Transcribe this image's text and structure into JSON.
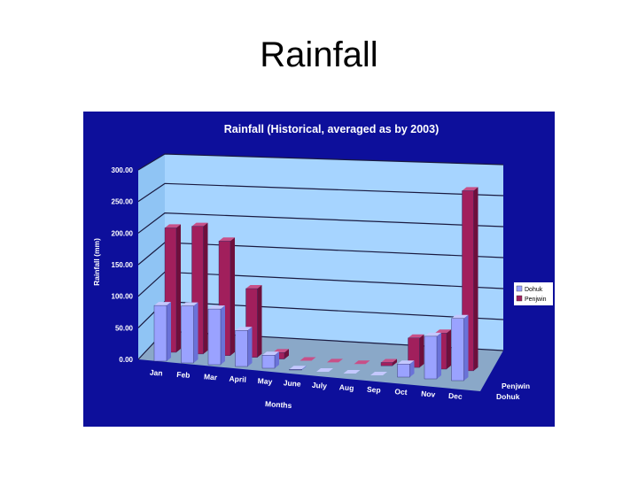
{
  "slide": {
    "title": "Rainfall"
  },
  "colors": {
    "panel": "#0d0f9b",
    "wall": "#a6d4ff",
    "floor": "#8aa8c8",
    "dohuk_front": "#9aa2ff",
    "dohuk_top": "#c4c8ff",
    "dohuk_side": "#6a72d8",
    "penjwin_front": "#a11f5c",
    "penjwin_top": "#c85088",
    "penjwin_side": "#6e0f3c"
  },
  "chart_data": {
    "type": "bar",
    "title": "Rainfall (Historical, averaged as by 2003)",
    "xlabel": "Months",
    "ylabel": "Rainfall (mm)",
    "ylim": [
      0,
      300
    ],
    "ytick_labels": [
      "0.00",
      "50.00",
      "100.00",
      "150.00",
      "200.00",
      "250.00",
      "300.00"
    ],
    "categories": [
      "Jan",
      "Feb",
      "Mar",
      "April",
      "May",
      "June",
      "July",
      "Aug",
      "Sep",
      "Oct",
      "Nov",
      "Dec"
    ],
    "depth_labels": [
      "Penjwin",
      "Dohuk"
    ],
    "series": [
      {
        "name": "Dohuk",
        "values": [
          85,
          87,
          85,
          55,
          20,
          1,
          0,
          0,
          0,
          20,
          65,
          95
        ]
      },
      {
        "name": "Penjwin",
        "values": [
          190,
          195,
          175,
          105,
          10,
          0,
          0,
          0,
          5,
          45,
          55,
          275
        ]
      }
    ],
    "legend": [
      "Dohuk",
      "Penjwin"
    ],
    "legend_position": "right",
    "grid": true
  }
}
